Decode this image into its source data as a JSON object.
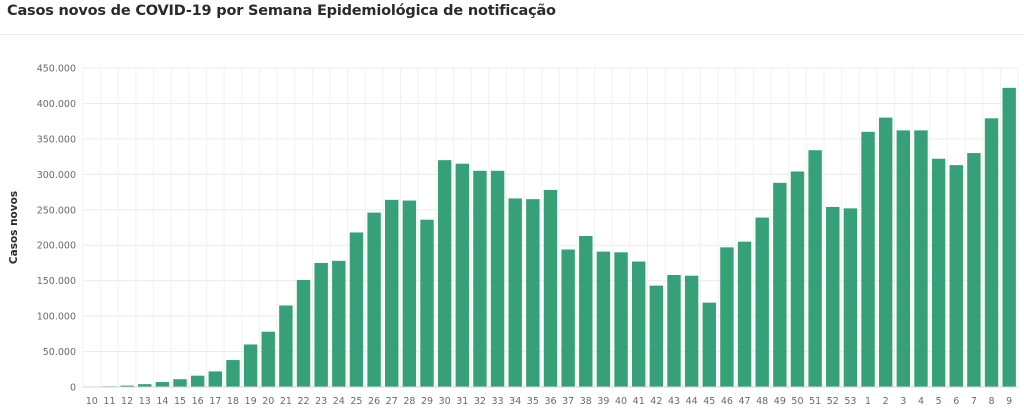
{
  "chart_data": {
    "type": "bar",
    "title": "Casos novos de COVID-19 por Semana Epidemiológica de notificação",
    "xlabel": "",
    "ylabel": "Casos novos",
    "ylim": [
      0,
      450000
    ],
    "yticks": [
      0,
      50000,
      100000,
      150000,
      200000,
      250000,
      300000,
      350000,
      400000,
      450000
    ],
    "ytick_labels": [
      "0",
      "50.000",
      "100.000",
      "150.000",
      "200.000",
      "250.000",
      "300.000",
      "350.000",
      "400.000",
      "450.000"
    ],
    "grid": true,
    "bar_color": "#36a078",
    "categories": [
      "10",
      "11",
      "12",
      "13",
      "14",
      "15",
      "16",
      "17",
      "18",
      "19",
      "20",
      "21",
      "22",
      "23",
      "24",
      "25",
      "26",
      "27",
      "28",
      "29",
      "30",
      "31",
      "32",
      "33",
      "34",
      "35",
      "36",
      "37",
      "38",
      "39",
      "40",
      "41",
      "42",
      "43",
      "44",
      "45",
      "46",
      "47",
      "48",
      "49",
      "50",
      "51",
      "52",
      "53",
      "1",
      "2",
      "3",
      "4",
      "5",
      "6",
      "7",
      "8",
      "9"
    ],
    "values": [
      500,
      1000,
      2000,
      4000,
      7000,
      11000,
      16000,
      22000,
      38000,
      60000,
      78000,
      115000,
      151000,
      175000,
      178000,
      218000,
      246000,
      264000,
      263000,
      236000,
      320000,
      315000,
      305000,
      305000,
      266000,
      265000,
      278000,
      194000,
      213000,
      191000,
      190000,
      177000,
      143000,
      158000,
      157000,
      119000,
      197000,
      205000,
      239000,
      288000,
      304000,
      334000,
      254000,
      252000,
      360000,
      380000,
      362000,
      362000,
      322000,
      313000,
      330000,
      379000,
      422000
    ]
  }
}
